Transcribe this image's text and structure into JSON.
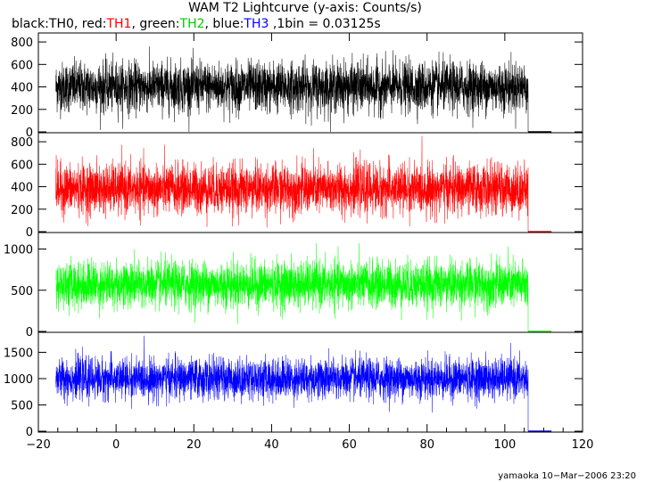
{
  "chart_data": {
    "type": "line",
    "title": "WAM T2 Lightcurve (y-axis: Counts/s)",
    "legend": {
      "parts": [
        {
          "label": "black:",
          "name": "TH0",
          "color": "#000000"
        },
        {
          "label": ", red:",
          "name": "TH1",
          "color": "#ff0000"
        },
        {
          "label": ", green:",
          "name": "TH2",
          "color": "#00cc00"
        },
        {
          "label": ", blue:",
          "name": "TH3",
          "color": "#0000ff"
        }
      ],
      "suffix": " ,1bin = 0.03125s",
      "placement": "top-left"
    },
    "xlim": [
      -20,
      120
    ],
    "x_ticks": [
      -20,
      0,
      20,
      40,
      60,
      80,
      100,
      120
    ],
    "x_tick_labels": [
      "−20",
      "0",
      "20",
      "40",
      "60",
      "80",
      "100",
      "120"
    ],
    "data_x_range": [
      -15.5,
      106
    ],
    "tail_x_range": [
      106,
      112
    ],
    "grid": false,
    "panels": [
      {
        "series_name": "TH0",
        "color": "#000000",
        "ylim": [
          0,
          880
        ],
        "y_ticks": [
          0,
          200,
          400,
          600,
          800
        ],
        "y_tick_labels": [
          "0",
          "200",
          "400",
          "600",
          "800"
        ],
        "mean": 400,
        "sigma": 110,
        "tail_value": 0
      },
      {
        "series_name": "TH1",
        "color": "#ff0000",
        "ylim": [
          0,
          880
        ],
        "y_ticks": [
          0,
          200,
          400,
          600,
          800
        ],
        "y_tick_labels": [
          "0",
          "200",
          "400",
          "600",
          "800"
        ],
        "mean": 380,
        "sigma": 110,
        "tail_value": 0
      },
      {
        "series_name": "TH2",
        "color": "#00ff00",
        "ylim": [
          0,
          1200
        ],
        "y_ticks": [
          0,
          500,
          1000
        ],
        "y_tick_labels": [
          "0",
          "500",
          "1000"
        ],
        "mean": 570,
        "sigma": 140,
        "tail_value": 0
      },
      {
        "series_name": "TH3",
        "color": "#0000ff",
        "ylim": [
          0,
          1880
        ],
        "y_ticks": [
          0,
          500,
          1000,
          1500
        ],
        "y_tick_labels": [
          "0",
          "500",
          "1000",
          "1500"
        ],
        "mean": 1000,
        "sigma": 190,
        "tail_value": 0
      }
    ]
  },
  "footer": {
    "text": "yamaoka 10−Mar−2006 23:20"
  }
}
